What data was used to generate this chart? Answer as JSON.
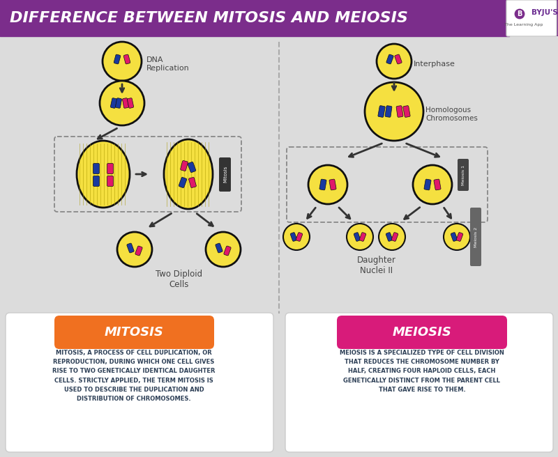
{
  "title": "DIFFERENCE BETWEEN MITOSIS AND MEIOSIS",
  "title_bg_color": "#7B2D8B",
  "title_text_color": "#FFFFFF",
  "bg_color": "#DCDCDC",
  "mitosis_label": "MITOSIS",
  "meiosis_label": "MEIOSIS",
  "mitosis_btn_color": "#F07020",
  "meiosis_btn_color": "#D81B7A",
  "card_bg": "#FFFFFF",
  "mitosis_text": "MITOSIS, A PROCESS OF CELL DUPLICATION, OR\nREPRODUCTION, DURING WHICH ONE CELL GIVES\nRISE TO TWO GENETICALLY IDENTICAL DAUGHTER\nCELLS. STRICTLY APPLIED, THE TERM MITOSIS IS\nUSED TO DESCRIBE THE DUPLICATION AND\nDISTRIBUTION OF CHROMOSOMES.",
  "meiosis_text": "MEIOSIS IS A SPECIALIZED TYPE OF CELL DIVISION\nTHAT REDUCES THE CHROMOSOME NUMBER BY\nHALF, CREATING FOUR HAPLOID CELLS, EACH\nGENETICALLY DISTINCT FROM THE PARENT CELL\nTHAT GAVE RISE TO THEM.",
  "text_color": "#2E4057",
  "cell_yellow": "#F5E040",
  "cell_outline": "#111111",
  "chr_blue": "#1A3A9F",
  "chr_pink": "#E0186A",
  "arrow_color": "#333333",
  "dna_rep_label": "DNA\nReplication",
  "interphase_label": "Interphase",
  "homologous_label": "Homologous\nChromosomes",
  "meiosis1_label": "Meiosis 1",
  "meiosis2_label": "Meiosis 2",
  "two_diploid_label": "Two Diploid\nCells",
  "daughter_nuclei_label": "Daughter\nNuclei II",
  "mitosis_bar_label": "Mitosis"
}
